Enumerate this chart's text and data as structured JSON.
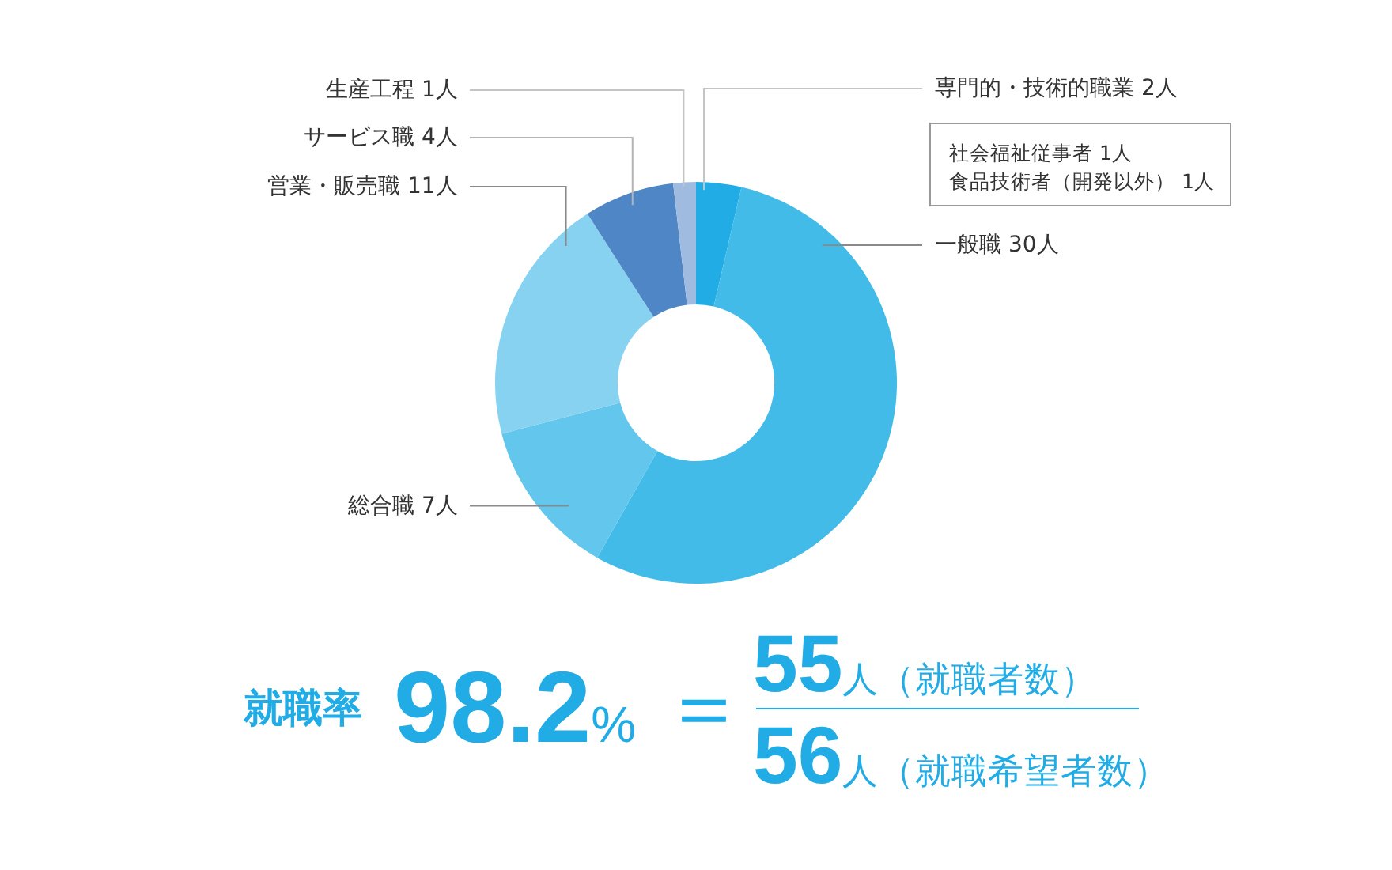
{
  "chart_data": {
    "type": "donut",
    "categories": [
      "専門的・技術的職業",
      "一般職",
      "総合職",
      "営業・販売職",
      "サービス職",
      "生産工程"
    ],
    "values": [
      2,
      30,
      7,
      11,
      4,
      1
    ],
    "value_labels": [
      "2人",
      "30人",
      "7人",
      "11人",
      "4人",
      "1人"
    ],
    "colors": [
      "#22ace6",
      "#43bbe8",
      "#63c6ec",
      "#88d2f1",
      "#4f86c6",
      "#9fbbe0"
    ],
    "legend": false,
    "annotations": [
      "社会福祉従事者 1人",
      "食品技術者（開発以外） 1人",
      "就職率",
      "98.2%",
      "＝",
      "55人（就職者数）",
      "56人（就職希望者数）"
    ]
  }
}
